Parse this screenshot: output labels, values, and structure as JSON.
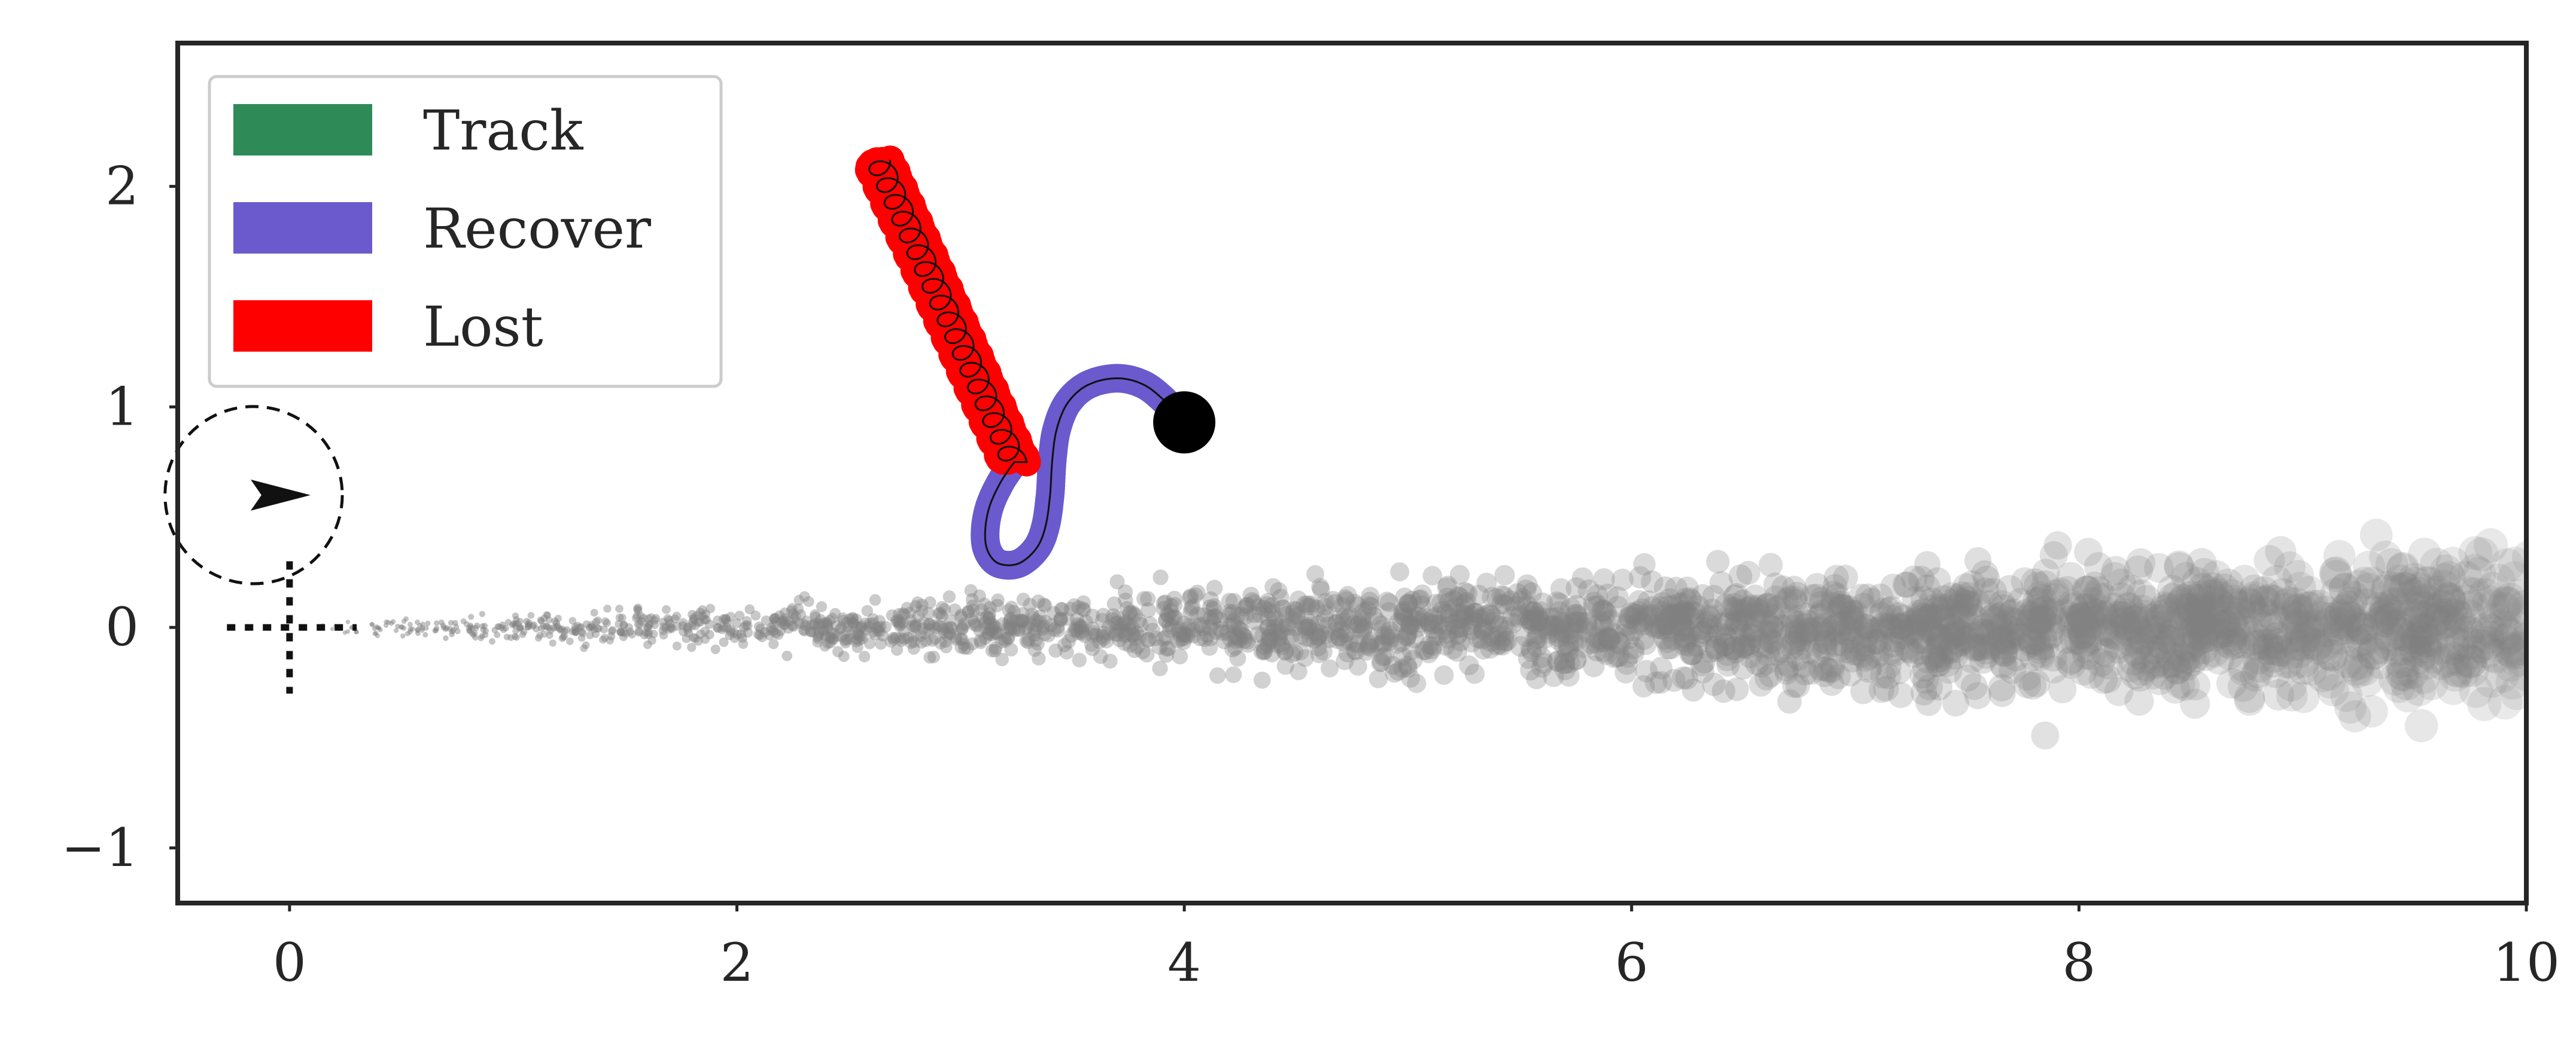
{
  "chart_data": {
    "type": "scatter",
    "xlim": [
      -0.5,
      10
    ],
    "ylim": [
      -1.25,
      2.65
    ],
    "x_ticks": [
      {
        "value": 0,
        "label": "0"
      },
      {
        "value": 2,
        "label": "2"
      },
      {
        "value": 4,
        "label": "4"
      },
      {
        "value": 6,
        "label": "6"
      },
      {
        "value": 8,
        "label": "8"
      },
      {
        "value": 10,
        "label": "10"
      }
    ],
    "y_ticks": [
      {
        "value": -1,
        "label": "−1"
      },
      {
        "value": 0,
        "label": "0"
      },
      {
        "value": 1,
        "label": "1"
      },
      {
        "value": 2,
        "label": "2"
      }
    ],
    "grid": false,
    "legend": {
      "placement": "top-left",
      "entries": [
        {
          "label": "Track",
          "color": "#2e8b57"
        },
        {
          "label": "Recover",
          "color": "#6a5acd"
        },
        {
          "label": "Lost",
          "color": "#ff0000"
        }
      ]
    },
    "particle_cloud": {
      "color": "#808080",
      "x_range": [
        0.2,
        10
      ],
      "y_center": 0,
      "description_note": "gray particle spread widening with x"
    },
    "sensor": {
      "x": 0,
      "y": 0.6,
      "radius": 0.3,
      "heading": "right"
    },
    "origin_marker": {
      "x": 0,
      "y": 0
    },
    "target_end": {
      "x": 4.0,
      "y": 0.93,
      "color": "#000000"
    },
    "recover_path": {
      "color": "#6a5acd",
      "points": [
        [
          4.0,
          0.93
        ],
        [
          3.92,
          1.02
        ],
        [
          3.82,
          1.1
        ],
        [
          3.7,
          1.13
        ],
        [
          3.57,
          1.1
        ],
        [
          3.48,
          1.02
        ],
        [
          3.43,
          0.9
        ],
        [
          3.41,
          0.76
        ],
        [
          3.4,
          0.6
        ],
        [
          3.38,
          0.46
        ],
        [
          3.34,
          0.36
        ],
        [
          3.26,
          0.29
        ],
        [
          3.17,
          0.29
        ],
        [
          3.12,
          0.35
        ],
        [
          3.11,
          0.44
        ],
        [
          3.13,
          0.55
        ],
        [
          3.18,
          0.66
        ],
        [
          3.24,
          0.75
        ]
      ]
    },
    "lost_path": {
      "color": "#ff0000",
      "start": [
        3.24,
        0.75
      ],
      "end": [
        2.63,
        2.12
      ],
      "loops": 18,
      "loop_radius": 0.055
    }
  }
}
